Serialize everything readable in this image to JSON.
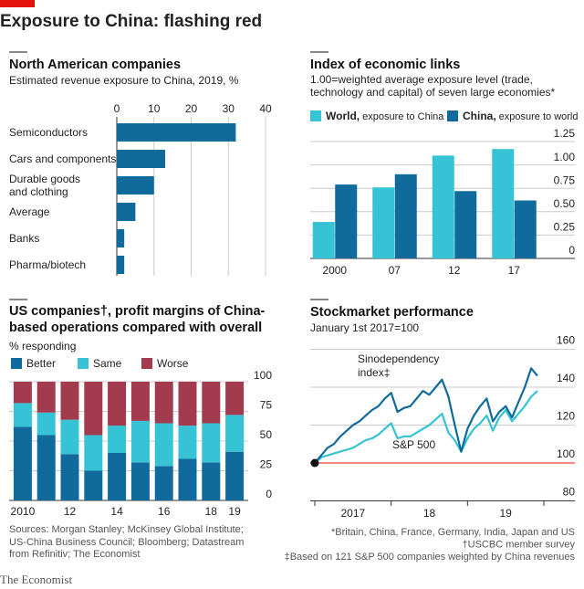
{
  "header": {
    "title": "Exposure to China: flashing red"
  },
  "chart_data": [
    {
      "type": "bar",
      "orientation": "horizontal",
      "title": "North American companies",
      "subtitle": "Estimated revenue exposure to China, 2019, %",
      "categories": [
        "Semiconductors",
        "Cars and components",
        "Durable goods\nand clothing",
        "Average",
        "Banks",
        "Pharma/biotech"
      ],
      "values": [
        32,
        13,
        10,
        5,
        2,
        2
      ],
      "color": "#106a9c",
      "xlim": [
        0,
        40
      ],
      "xticks": [
        0,
        10,
        20,
        30,
        40
      ],
      "grid": true
    },
    {
      "type": "grouped_bar",
      "title": "Index of economic links",
      "subtitle": "1.00=weighted average exposure level (trade, technology and capital) of seven large economies*",
      "categories": [
        "2000",
        "07",
        "12",
        "17"
      ],
      "series": [
        {
          "name": "World,",
          "description": "exposure to China",
          "color": "#36c3d6",
          "values": [
            0.39,
            0.76,
            1.1,
            1.17
          ]
        },
        {
          "name": "China,",
          "description": "exposure to world",
          "color": "#106a9c",
          "values": [
            0.79,
            0.9,
            0.72,
            0.62
          ]
        }
      ],
      "ylim": [
        0,
        1.25
      ],
      "yticks": [
        0,
        0.25,
        {
          "value": 0.5,
          "label": "0.50"
        },
        0.75,
        {
          "value": 1,
          "label": "1.00"
        },
        1.25
      ],
      "grid": true
    },
    {
      "type": "stacked_bar",
      "title": "US companies†, profit margins of China-based operations compared with overall operations",
      "subtitle": "% responding",
      "categories": [
        "2010",
        null,
        "12",
        null,
        "14",
        null,
        "16",
        null,
        "18",
        "19"
      ],
      "series": [
        {
          "name": "Better",
          "color": "#106a9c",
          "values": [
            62,
            55,
            39,
            25,
            40,
            32,
            29,
            35,
            32,
            41
          ]
        },
        {
          "name": "Same",
          "color": "#36c3d6",
          "values": [
            20,
            19,
            29,
            30,
            23,
            35,
            36,
            28,
            33,
            31
          ]
        },
        {
          "name": "Worse",
          "color": "#a33b4f",
          "values": [
            18,
            26,
            32,
            45,
            37,
            33,
            35,
            37,
            35,
            28
          ]
        }
      ],
      "ylim": [
        0,
        100
      ],
      "yticks": [
        0,
        25,
        50,
        75,
        100
      ],
      "grid": true
    },
    {
      "type": "line",
      "title": "Stockmarket performance",
      "subtitle": "January 1st 2017=100",
      "x": [
        "2017-01",
        "2017-02",
        "2017-03",
        "2017-04",
        "2017-05",
        "2017-06",
        "2017-07",
        "2017-08",
        "2017-09",
        "2017-10",
        "2017-11",
        "2017-12",
        "2018-01",
        "2018-02",
        "2018-03",
        "2018-04",
        "2018-05",
        "2018-06",
        "2018-07",
        "2018-08",
        "2018-09",
        "2018-10",
        "2018-11",
        "2018-12",
        "2019-01",
        "2019-02",
        "2019-03",
        "2019-04",
        "2019-05",
        "2019-06",
        "2019-07",
        "2019-08",
        "2019-09",
        "2019-10",
        "2019-11",
        "2019-12"
      ],
      "series": [
        {
          "name": "Sinodependency index‡",
          "color": "#106a9c",
          "values": [
            100,
            104,
            108,
            110,
            114,
            117,
            120,
            122,
            125,
            128,
            130,
            134,
            137,
            127,
            129,
            130,
            134,
            138,
            136,
            140,
            144,
            135,
            120,
            106,
            118,
            125,
            130,
            134,
            122,
            127,
            130,
            124,
            132,
            140,
            150,
            146
          ]
        },
        {
          "name": "S&P 500",
          "color": "#36c3d6",
          "values": [
            100,
            103,
            104,
            105,
            106,
            107,
            108,
            110,
            112,
            113,
            115,
            118,
            121,
            113,
            114,
            114,
            116,
            118,
            120,
            123,
            126,
            116,
            112,
            106,
            113,
            118,
            121,
            125,
            117,
            124,
            128,
            122,
            126,
            130,
            135,
            138
          ]
        }
      ],
      "xlim": [
        "2017-01",
        "2020-01"
      ],
      "xtick_marks": [
        "2017-01",
        "2018-01",
        "2019-01",
        "2020-01"
      ],
      "xticks": [
        {
          "value": "2017-07",
          "label": "2017"
        },
        {
          "value": "2018-07",
          "label": "18"
        },
        {
          "value": "2019-07",
          "label": "19"
        }
      ],
      "ylim": [
        80,
        160
      ],
      "yticks": [
        80,
        100,
        120,
        140,
        160
      ],
      "baseline": 100,
      "grid": true
    }
  ],
  "footer": {
    "sources": "Sources: Morgan Stanley; McKinsey Global Institute; US-China Business Council; Bloomberg; Datastream from Refinitiv; The Economist",
    "notes": [
      "*Britain, China, France, Germany, India, Japan and US",
      "†USCBC member survey",
      "‡Based on 121 S&P 500 companies weighted by China revenues"
    ],
    "brand": "The Economist"
  }
}
